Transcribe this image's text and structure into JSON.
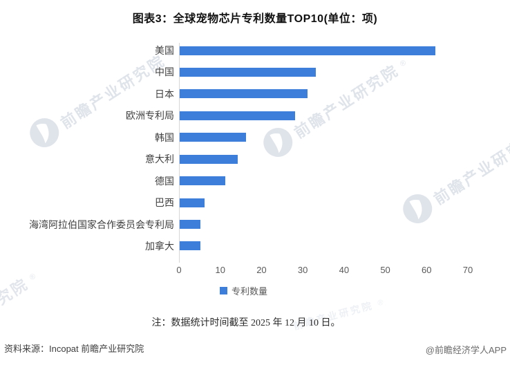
{
  "title": "图表3：全球宠物芯片专利数量TOP10(单位：项)",
  "chart_data": {
    "type": "bar",
    "orientation": "horizontal",
    "title": "图表3：全球宠物芯片专利数量TOP10(单位：项)",
    "categories": [
      "美国",
      "中国",
      "日本",
      "欧洲专利局",
      "韩国",
      "意大利",
      "德国",
      "巴西",
      "海湾阿拉伯国家合作委员会专利局",
      "加拿大"
    ],
    "values": [
      62,
      33,
      31,
      28,
      16,
      14,
      11,
      6,
      5,
      5
    ],
    "xlabel": "",
    "ylabel": "",
    "xlim": [
      0,
      70
    ],
    "xticks": [
      0,
      10,
      20,
      30,
      40,
      50,
      60,
      70
    ],
    "grid": false,
    "legend_entries": [
      "专利数量"
    ],
    "legend_position": "bottom",
    "bar_color": "#3d7edb"
  },
  "legend": {
    "label": "专利数量",
    "color": "#3d7edb"
  },
  "note": "注：数据统计时间截至 2025 年 12 月 10 日。",
  "footer": {
    "source": "资料来源：Incopat 前瞻产业研究院",
    "credit": "@前瞻经济学人APP"
  },
  "watermark": {
    "text": "前瞻产业研究院",
    "registered": "®",
    "logo_icon": "qianzhan-logo-icon"
  }
}
